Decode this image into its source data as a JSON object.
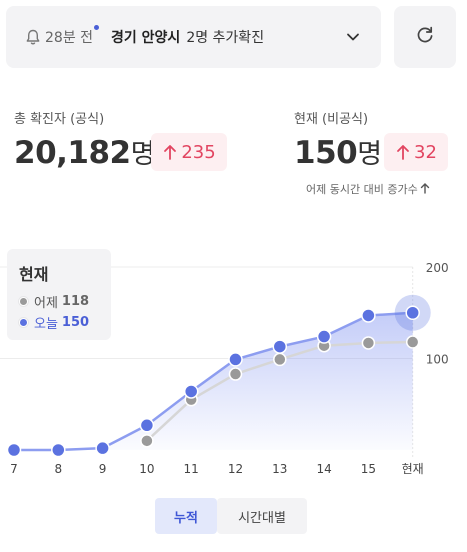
{
  "notice": {
    "time": "28분 전",
    "region": "경기 안양시",
    "count": "2명 추가확진",
    "icon": "bell-icon"
  },
  "refresh": {
    "icon": "refresh-icon"
  },
  "official": {
    "label": "총 확진자 (공식)",
    "value": "20,182",
    "unit": "명",
    "delta": "235"
  },
  "unofficial": {
    "label": "현재 (비공식)",
    "value": "150",
    "unit": "명",
    "delta": "32"
  },
  "footnote": "어제 동시간 대비 증가수",
  "legend": {
    "title": "현재",
    "yesterday_label": "어제",
    "yesterday_value": "118",
    "today_label": "오늘",
    "today_value": "150"
  },
  "tabs": {
    "active": "누적",
    "inactive": "시간대별"
  },
  "colors": {
    "accent": "#5b72e0",
    "gray": "#9a9a9a",
    "delta": "#e24561",
    "badge_bg": "#fdeff1"
  },
  "chart_data": {
    "type": "line",
    "categories": [
      "7",
      "8",
      "9",
      "10",
      "11",
      "12",
      "13",
      "14",
      "15",
      "현재"
    ],
    "series": [
      {
        "name": "어제",
        "color": "#9a9a9a",
        "values": [
          null,
          null,
          null,
          10,
          55,
          83,
          99,
          114,
          117,
          118
        ]
      },
      {
        "name": "오늘",
        "color": "#5b72e0",
        "values": [
          0,
          0,
          2,
          27,
          64,
          99,
          113,
          124,
          147,
          150
        ]
      }
    ],
    "yticks": [
      "100",
      "200"
    ],
    "ylim": [
      0,
      200
    ],
    "grid": true
  }
}
